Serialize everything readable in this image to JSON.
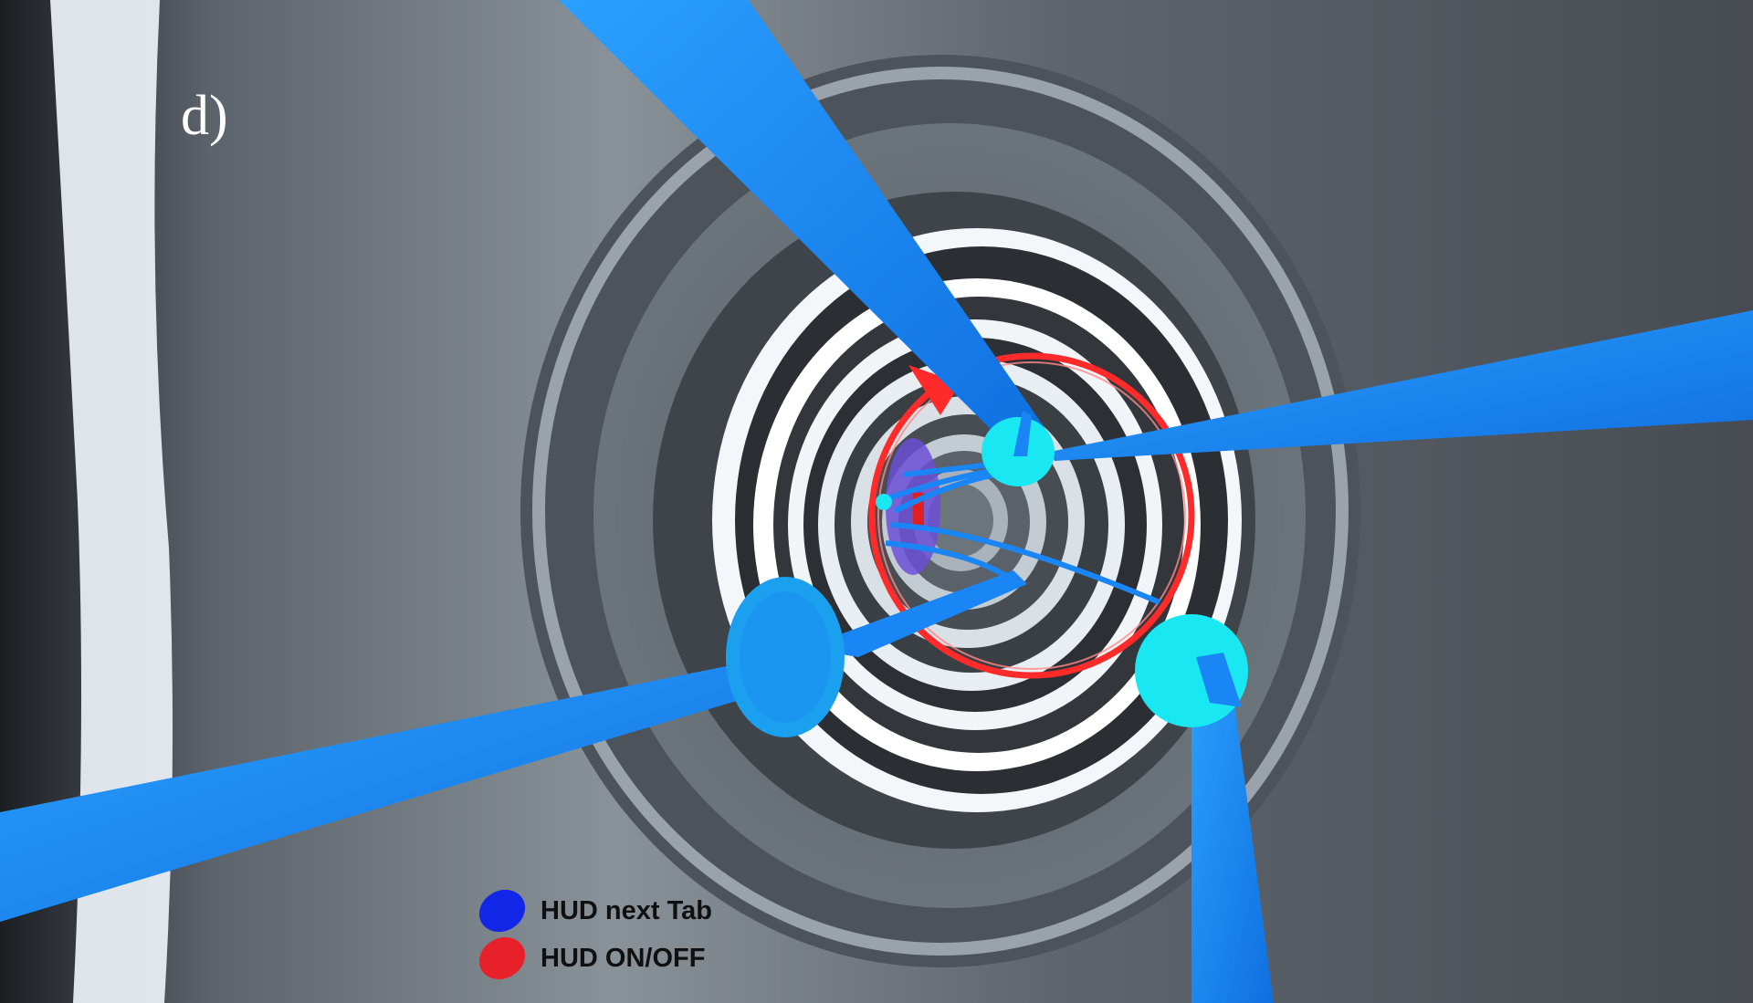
{
  "panel_label": "d)",
  "legend": [
    {
      "label": "HUD next Tab",
      "color": "#1226e8"
    },
    {
      "label": "HUD ON/OFF",
      "color": "#e8202a"
    }
  ],
  "colors": {
    "guide_cone": "#1a86f5",
    "guide_node": "#19e8f2",
    "target_ring": "#ff2a2a",
    "tunnel_dark": "#2a2e33",
    "tunnel_light": "#f2f5f8"
  }
}
